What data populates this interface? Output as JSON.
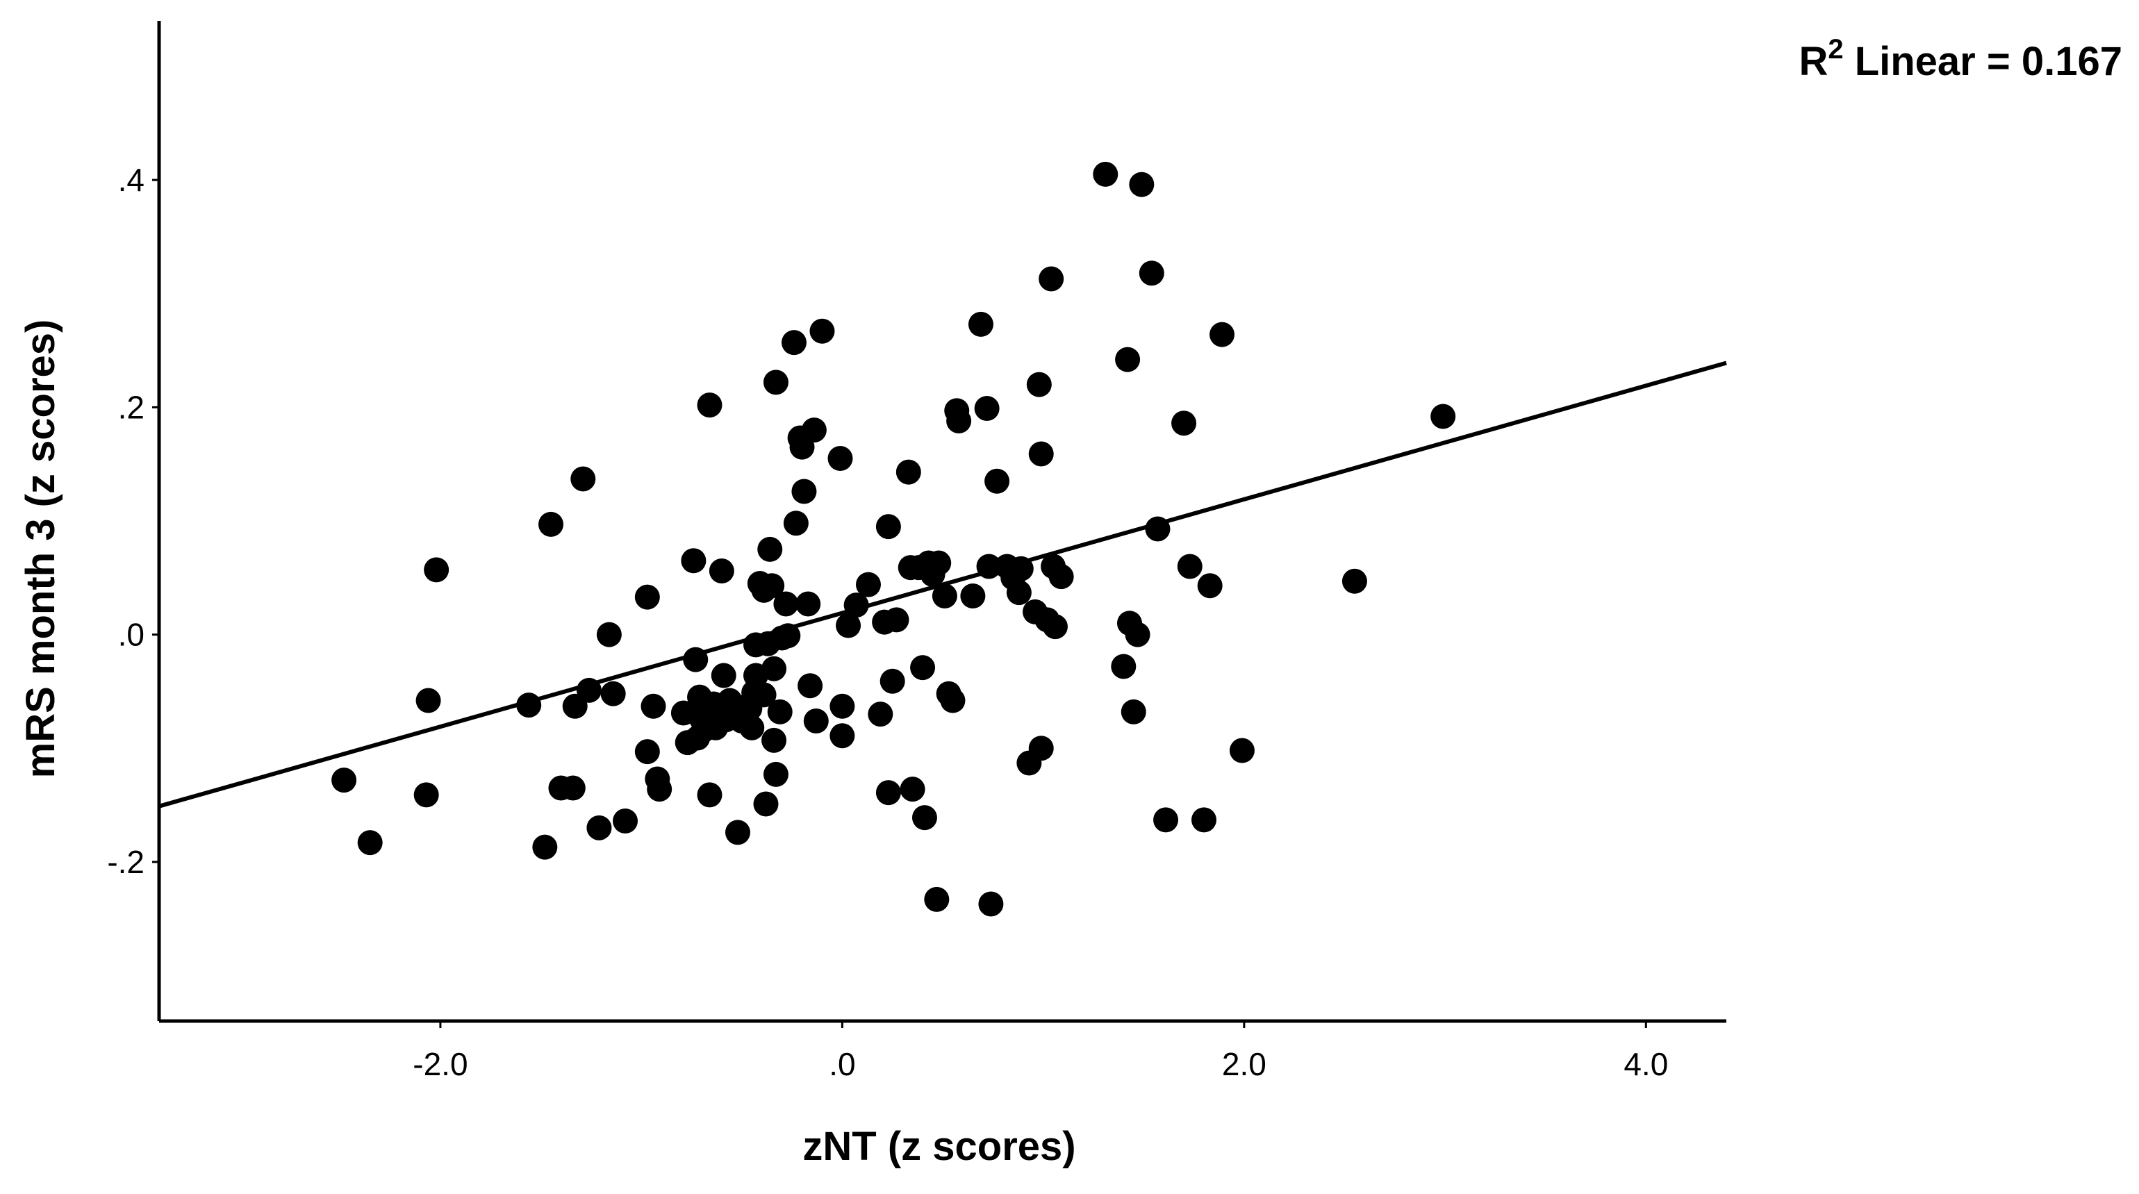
{
  "chart_data": {
    "type": "scatter",
    "xlabel": "zNT (z scores)",
    "ylabel": "mRS month 3 (z scores)",
    "xlim": [
      -3.4,
      4.4
    ],
    "ylim": [
      -0.34,
      0.54
    ],
    "x_ticks": [
      {
        "value": -2.0,
        "label": "-2.0"
      },
      {
        "value": 0.0,
        "label": ".0"
      },
      {
        "value": 2.0,
        "label": "2.0"
      },
      {
        "value": 4.0,
        "label": "4.0"
      }
    ],
    "y_ticks": [
      {
        "value": 0.4,
        "label": ".4"
      },
      {
        "value": 0.2,
        "label": ".2"
      },
      {
        "value": 0.0,
        "label": ".0"
      },
      {
        "value": -0.2,
        "label": "-.2"
      }
    ],
    "annotation": {
      "prefix": "R",
      "superscript": "2",
      "text": " Linear = 0.167"
    },
    "fit_line": {
      "intercept": 0.019,
      "slope": 0.05
    },
    "points": [
      [
        -2.48,
        -0.128
      ],
      [
        -2.35,
        -0.183
      ],
      [
        -2.07,
        -0.141
      ],
      [
        -2.06,
        -0.058
      ],
      [
        -2.02,
        0.057
      ],
      [
        -1.56,
        -0.062
      ],
      [
        -1.48,
        -0.187
      ],
      [
        -1.45,
        0.097
      ],
      [
        -1.4,
        -0.135
      ],
      [
        -1.34,
        -0.135
      ],
      [
        -1.33,
        -0.063
      ],
      [
        -1.29,
        0.137
      ],
      [
        -1.26,
        -0.049
      ],
      [
        -1.21,
        -0.17
      ],
      [
        -1.16,
        0.0
      ],
      [
        -1.14,
        -0.052
      ],
      [
        -1.08,
        -0.164
      ],
      [
        -0.97,
        0.033
      ],
      [
        -0.97,
        -0.103
      ],
      [
        -0.94,
        -0.063
      ],
      [
        -0.92,
        -0.127
      ],
      [
        -0.91,
        -0.136
      ],
      [
        -0.79,
        -0.069
      ],
      [
        -0.77,
        -0.095
      ],
      [
        -0.74,
        0.065
      ],
      [
        -0.73,
        -0.022
      ],
      [
        -0.72,
        -0.091
      ],
      [
        -0.71,
        -0.055
      ],
      [
        -0.7,
        -0.074
      ],
      [
        -0.69,
        -0.084
      ],
      [
        -0.66,
        0.202
      ],
      [
        -0.66,
        -0.141
      ],
      [
        -0.64,
        -0.061
      ],
      [
        -0.63,
        -0.082
      ],
      [
        -0.6,
        0.056
      ],
      [
        -0.59,
        -0.036
      ],
      [
        -0.58,
        -0.075
      ],
      [
        -0.56,
        -0.058
      ],
      [
        -0.53,
        -0.063
      ],
      [
        -0.52,
        -0.174
      ],
      [
        -0.5,
        -0.076
      ],
      [
        -0.46,
        -0.065
      ],
      [
        -0.45,
        -0.082
      ],
      [
        -0.44,
        -0.051
      ],
      [
        -0.43,
        -0.009
      ],
      [
        -0.43,
        -0.036
      ],
      [
        -0.41,
        0.045
      ],
      [
        -0.39,
        0.039
      ],
      [
        -0.39,
        -0.053
      ],
      [
        -0.38,
        -0.149
      ],
      [
        -0.37,
        -0.008
      ],
      [
        -0.36,
        0.075
      ],
      [
        -0.35,
        0.043
      ],
      [
        -0.34,
        -0.03
      ],
      [
        -0.34,
        -0.093
      ],
      [
        -0.33,
        0.222
      ],
      [
        -0.33,
        -0.123
      ],
      [
        -0.31,
        -0.068
      ],
      [
        -0.3,
        -0.003
      ],
      [
        -0.28,
        0.027
      ],
      [
        -0.27,
        -0.001
      ],
      [
        -0.24,
        0.257
      ],
      [
        -0.23,
        0.098
      ],
      [
        -0.21,
        0.173
      ],
      [
        -0.2,
        0.165
      ],
      [
        -0.19,
        0.126
      ],
      [
        -0.17,
        0.027
      ],
      [
        -0.16,
        -0.045
      ],
      [
        -0.14,
        0.18
      ],
      [
        -0.13,
        -0.076
      ],
      [
        -0.1,
        0.267
      ],
      [
        -0.01,
        0.155
      ],
      [
        0.0,
        -0.089
      ],
      [
        0.0,
        -0.063
      ],
      [
        0.03,
        0.008
      ],
      [
        0.07,
        0.026
      ],
      [
        0.13,
        0.044
      ],
      [
        0.19,
        -0.07
      ],
      [
        0.21,
        0.011
      ],
      [
        0.23,
        -0.139
      ],
      [
        0.23,
        0.095
      ],
      [
        0.25,
        -0.041
      ],
      [
        0.27,
        0.013
      ],
      [
        0.33,
        0.143
      ],
      [
        0.34,
        0.059
      ],
      [
        0.35,
        -0.136
      ],
      [
        0.38,
        0.059
      ],
      [
        0.4,
        -0.029
      ],
      [
        0.41,
        -0.161
      ],
      [
        0.43,
        0.063
      ],
      [
        0.45,
        0.053
      ],
      [
        0.47,
        -0.233
      ],
      [
        0.48,
        0.063
      ],
      [
        0.51,
        0.034
      ],
      [
        0.53,
        -0.052
      ],
      [
        0.55,
        -0.058
      ],
      [
        0.57,
        0.197
      ],
      [
        0.58,
        0.188
      ],
      [
        0.65,
        0.034
      ],
      [
        0.69,
        0.273
      ],
      [
        0.72,
        0.199
      ],
      [
        0.73,
        0.06
      ],
      [
        0.74,
        -0.237
      ],
      [
        0.77,
        0.135
      ],
      [
        0.82,
        0.06
      ],
      [
        0.85,
        0.05
      ],
      [
        0.88,
        0.037
      ],
      [
        0.89,
        0.058
      ],
      [
        0.93,
        -0.113
      ],
      [
        0.96,
        0.02
      ],
      [
        0.98,
        0.22
      ],
      [
        0.99,
        0.159
      ],
      [
        0.99,
        -0.1
      ],
      [
        1.02,
        0.013
      ],
      [
        1.04,
        0.313
      ],
      [
        1.05,
        0.06
      ],
      [
        1.06,
        0.007
      ],
      [
        1.09,
        0.051
      ],
      [
        1.31,
        0.405
      ],
      [
        1.4,
        -0.028
      ],
      [
        1.42,
        0.242
      ],
      [
        1.43,
        0.01
      ],
      [
        1.45,
        -0.068
      ],
      [
        1.47,
        0.0
      ],
      [
        1.49,
        0.396
      ],
      [
        1.54,
        0.318
      ],
      [
        1.57,
        0.093
      ],
      [
        1.61,
        -0.163
      ],
      [
        1.7,
        0.186
      ],
      [
        1.73,
        0.06
      ],
      [
        1.8,
        -0.163
      ],
      [
        1.83,
        0.043
      ],
      [
        1.89,
        0.264
      ],
      [
        1.99,
        -0.102
      ],
      [
        2.55,
        0.047
      ],
      [
        2.99,
        0.192
      ]
    ]
  }
}
